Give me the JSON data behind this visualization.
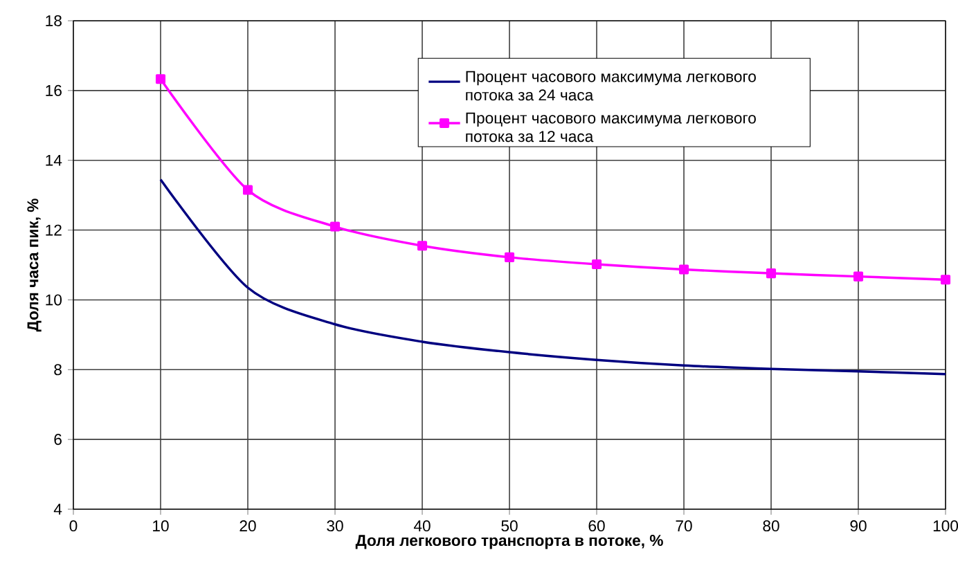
{
  "chart_data": {
    "type": "line",
    "xlabel": "Доля легкового транспорта в потоке, %",
    "ylabel": "Доля часа пик, %",
    "x": [
      10,
      20,
      30,
      40,
      50,
      60,
      70,
      80,
      90,
      100
    ],
    "series": [
      {
        "name": "Процент часового максимума легкового потока за 24 часа",
        "color": "#000080",
        "marker": "none",
        "values": [
          13.45,
          10.35,
          9.3,
          8.8,
          8.5,
          8.28,
          8.12,
          8.02,
          7.95,
          7.87
        ]
      },
      {
        "name": "Процент часового максимума легкового потока за 12 часа",
        "color": "#ff00ff",
        "marker": "square",
        "values": [
          16.33,
          13.15,
          12.1,
          11.55,
          11.22,
          11.02,
          10.87,
          10.76,
          10.67,
          10.58
        ]
      }
    ],
    "xlim": [
      0,
      100
    ],
    "xticks": [
      0,
      10,
      20,
      30,
      40,
      50,
      60,
      70,
      80,
      90,
      100
    ],
    "ylim": [
      4,
      18
    ],
    "yticks": [
      4,
      6,
      8,
      10,
      12,
      14,
      16,
      18
    ],
    "grid": true,
    "legend": "top right",
    "line_style": "solid"
  }
}
